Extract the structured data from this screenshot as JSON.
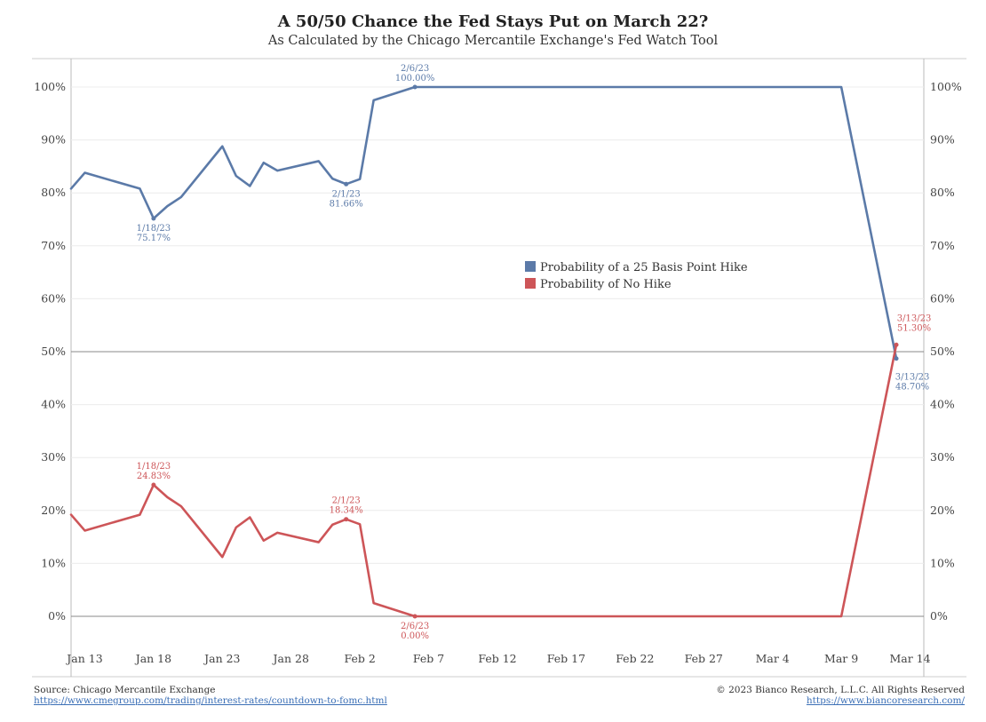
{
  "title": "A 50/50 Chance the Fed Stays Put on March 22?",
  "subtitle": "As Calculated by the Chicago Mercantile Exchange's Fed Watch Tool",
  "footer": {
    "source": "Source: Chicago Mercantile Exchange",
    "source_url": "https://www.cmegroup.com/trading/interest-rates/countdown-to-fomc.html",
    "copyright": "© 2023 Bianco Research, L.L.C. All Rights Reserved",
    "site_url": "https://www.biancoresearch.com/"
  },
  "colors": {
    "hike": "#5b7aa8",
    "nohike": "#cd5558",
    "grid": "#ececec",
    "axis": "#bbbbbb",
    "refline": "#888888"
  },
  "chart_data": {
    "type": "line",
    "x_start": "2023-01-12",
    "x_end": "2023-03-15",
    "x_ticks": [
      {
        "date": "2023-01-13",
        "label": "Jan 13"
      },
      {
        "date": "2023-01-18",
        "label": "Jan 18"
      },
      {
        "date": "2023-01-23",
        "label": "Jan 23"
      },
      {
        "date": "2023-01-28",
        "label": "Jan 28"
      },
      {
        "date": "2023-02-02",
        "label": "Feb 2"
      },
      {
        "date": "2023-02-07",
        "label": "Feb 7"
      },
      {
        "date": "2023-02-12",
        "label": "Feb 12"
      },
      {
        "date": "2023-02-17",
        "label": "Feb 17"
      },
      {
        "date": "2023-02-22",
        "label": "Feb 22"
      },
      {
        "date": "2023-02-27",
        "label": "Feb 27"
      },
      {
        "date": "2023-03-04",
        "label": "Mar 4"
      },
      {
        "date": "2023-03-09",
        "label": "Mar 9"
      },
      {
        "date": "2023-03-14",
        "label": "Mar 14"
      }
    ],
    "ylim": [
      0,
      100
    ],
    "y_ticks": [
      "0%",
      "10%",
      "20%",
      "30%",
      "40%",
      "50%",
      "60%",
      "70%",
      "80%",
      "90%",
      "100%"
    ],
    "grid": true,
    "reference_lines": [
      0,
      50
    ],
    "legend": {
      "placement": "center-right",
      "entries": [
        "Probability of a 25 Basis Point Hike",
        "Probability of No Hike"
      ]
    },
    "series": [
      {
        "name": "Probability of a 25 Basis Point Hike",
        "color": "#5b7aa8",
        "points": [
          [
            "2023-01-12",
            80.8
          ],
          [
            "2023-01-13",
            83.8
          ],
          [
            "2023-01-17",
            80.8
          ],
          [
            "2023-01-18",
            75.17
          ],
          [
            "2023-01-19",
            77.5
          ],
          [
            "2023-01-20",
            79.2
          ],
          [
            "2023-01-23",
            88.8
          ],
          [
            "2023-01-24",
            83.2
          ],
          [
            "2023-01-25",
            81.3
          ],
          [
            "2023-01-26",
            85.7
          ],
          [
            "2023-01-27",
            84.2
          ],
          [
            "2023-01-30",
            86.0
          ],
          [
            "2023-01-31",
            82.7
          ],
          [
            "2023-02-01",
            81.66
          ],
          [
            "2023-02-02",
            82.6
          ],
          [
            "2023-02-03",
            97.5
          ],
          [
            "2023-02-06",
            100
          ],
          [
            "2023-03-09",
            100
          ],
          [
            "2023-03-13",
            48.7
          ]
        ]
      },
      {
        "name": "Probability of No Hike",
        "color": "#cd5558",
        "points": [
          [
            "2023-01-12",
            19.2
          ],
          [
            "2023-01-13",
            16.2
          ],
          [
            "2023-01-17",
            19.2
          ],
          [
            "2023-01-18",
            24.83
          ],
          [
            "2023-01-19",
            22.5
          ],
          [
            "2023-01-20",
            20.8
          ],
          [
            "2023-01-23",
            11.2
          ],
          [
            "2023-01-24",
            16.8
          ],
          [
            "2023-01-25",
            18.7
          ],
          [
            "2023-01-26",
            14.3
          ],
          [
            "2023-01-27",
            15.8
          ],
          [
            "2023-01-30",
            14.0
          ],
          [
            "2023-01-31",
            17.3
          ],
          [
            "2023-02-01",
            18.34
          ],
          [
            "2023-02-02",
            17.4
          ],
          [
            "2023-02-03",
            2.5
          ],
          [
            "2023-02-06",
            0
          ],
          [
            "2023-03-09",
            0
          ],
          [
            "2023-03-13",
            51.3
          ]
        ]
      }
    ],
    "annotations": [
      {
        "series": 0,
        "date": "2023-01-18",
        "value": 75.17,
        "label_date": "1/18/23",
        "label_value": "75.17%",
        "pos": "below"
      },
      {
        "series": 0,
        "date": "2023-02-01",
        "value": 81.66,
        "label_date": "2/1/23",
        "label_value": "81.66%",
        "pos": "below"
      },
      {
        "series": 0,
        "date": "2023-02-06",
        "value": 100,
        "label_date": "2/6/23",
        "label_value": "100.00%",
        "pos": "above"
      },
      {
        "series": 0,
        "date": "2023-03-13",
        "value": 48.7,
        "label_date": "3/13/23",
        "label_value": "48.70%",
        "pos": "below-right"
      },
      {
        "series": 1,
        "date": "2023-01-18",
        "value": 24.83,
        "label_date": "1/18/23",
        "label_value": "24.83%",
        "pos": "above"
      },
      {
        "series": 1,
        "date": "2023-02-01",
        "value": 18.34,
        "label_date": "2/1/23",
        "label_value": "18.34%",
        "pos": "above"
      },
      {
        "series": 1,
        "date": "2023-02-06",
        "value": 0,
        "label_date": "2/6/23",
        "label_value": "0.00%",
        "pos": "below"
      },
      {
        "series": 1,
        "date": "2023-03-13",
        "value": 51.3,
        "label_date": "3/13/23",
        "label_value": "51.30%",
        "pos": "above-right"
      }
    ]
  }
}
